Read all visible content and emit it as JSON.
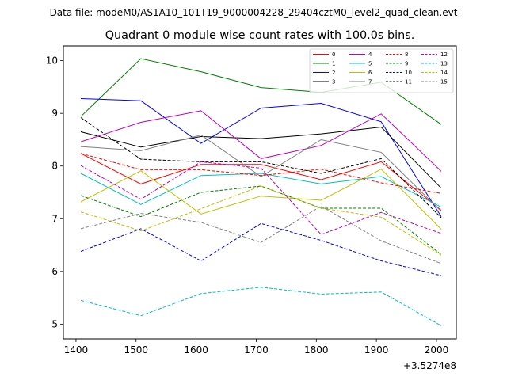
{
  "header": {
    "suptitle": "Data file: modeM0/AS1A10_101T19_9000004228_29404cztM0_level2_quad_clean.evt"
  },
  "chart_data": {
    "type": "line",
    "title": "Quadrant 0 module wise count rates with 100.0s bins.",
    "xlabel": "",
    "ylabel": "",
    "x_offset_text": "+3.5274e8",
    "x_ticks": [
      1400,
      1500,
      1600,
      1700,
      1800,
      1900,
      2000
    ],
    "x_tick_labels": [
      "1400",
      "1500",
      "1600",
      "1700",
      "1800",
      "1900",
      "2000"
    ],
    "y_ticks": [
      5,
      6,
      7,
      8,
      9,
      10
    ],
    "y_tick_labels": [
      "5",
      "6",
      "7",
      "8",
      "9",
      "10"
    ],
    "xlim": [
      1379,
      2033
    ],
    "ylim": [
      4.72,
      10.28
    ],
    "grid": false,
    "legend_position": "top-right",
    "x": [
      1408,
      1508,
      1608,
      1708,
      1808,
      1908,
      2008
    ],
    "series": [
      {
        "name": "0",
        "color": "#ff0000",
        "dashed": false,
        "values": [
          8.24,
          7.66,
          8.03,
          8.03,
          7.74,
          8.08,
          7.16
        ]
      },
      {
        "name": "1",
        "color": "#008000",
        "dashed": false,
        "values": [
          8.94,
          10.04,
          9.79,
          9.49,
          9.4,
          9.59,
          8.79
        ]
      },
      {
        "name": "2",
        "color": "#0000ff",
        "dashed": false,
        "values": [
          9.28,
          9.24,
          8.43,
          9.1,
          9.19,
          8.84,
          7.04
        ]
      },
      {
        "name": "3",
        "color": "#000000",
        "dashed": false,
        "values": [
          8.65,
          8.36,
          8.56,
          8.52,
          8.61,
          8.74,
          7.58
        ]
      },
      {
        "name": "4",
        "color": "#bf00bf",
        "dashed": false,
        "values": [
          8.46,
          8.83,
          9.05,
          8.14,
          8.39,
          8.99,
          7.9
        ]
      },
      {
        "name": "5",
        "color": "#00bfbf",
        "dashed": false,
        "values": [
          7.86,
          7.27,
          7.82,
          7.86,
          7.66,
          7.8,
          7.22
        ]
      },
      {
        "name": "6",
        "color": "#bfbf00",
        "dashed": false,
        "values": [
          7.32,
          7.91,
          7.09,
          7.43,
          7.35,
          7.94,
          6.8
        ]
      },
      {
        "name": "7",
        "color": "#808080",
        "dashed": false,
        "values": [
          8.37,
          8.29,
          8.59,
          7.8,
          8.5,
          8.26,
          7.14
        ]
      },
      {
        "name": "8",
        "color": "#ff0000",
        "dashed": true,
        "values": [
          8.24,
          7.93,
          7.93,
          7.82,
          7.94,
          7.68,
          7.48
        ]
      },
      {
        "name": "9",
        "color": "#008000",
        "dashed": true,
        "values": [
          7.44,
          7.04,
          7.5,
          7.62,
          7.2,
          7.2,
          6.32
        ]
      },
      {
        "name": "10",
        "color": "#0000ff",
        "dashed": true,
        "values": [
          6.38,
          6.81,
          6.2,
          6.91,
          6.59,
          6.2,
          5.92
        ]
      },
      {
        "name": "11",
        "color": "#000000",
        "dashed": true,
        "values": [
          8.92,
          8.13,
          8.08,
          8.08,
          7.86,
          8.14,
          7.02
        ]
      },
      {
        "name": "12",
        "color": "#bf00bf",
        "dashed": true,
        "values": [
          8.01,
          7.37,
          8.08,
          7.96,
          6.7,
          7.12,
          6.72
        ]
      },
      {
        "name": "13",
        "color": "#00bfbf",
        "dashed": true,
        "values": [
          5.45,
          5.16,
          5.58,
          5.7,
          5.57,
          5.61,
          4.97
        ]
      },
      {
        "name": "14",
        "color": "#bfbf00",
        "dashed": true,
        "values": [
          7.13,
          6.77,
          7.19,
          7.62,
          7.2,
          7.03,
          6.31
        ]
      },
      {
        "name": "15",
        "color": "#808080",
        "dashed": true,
        "values": [
          6.81,
          7.1,
          6.93,
          6.55,
          7.24,
          6.58,
          6.15
        ]
      }
    ]
  }
}
